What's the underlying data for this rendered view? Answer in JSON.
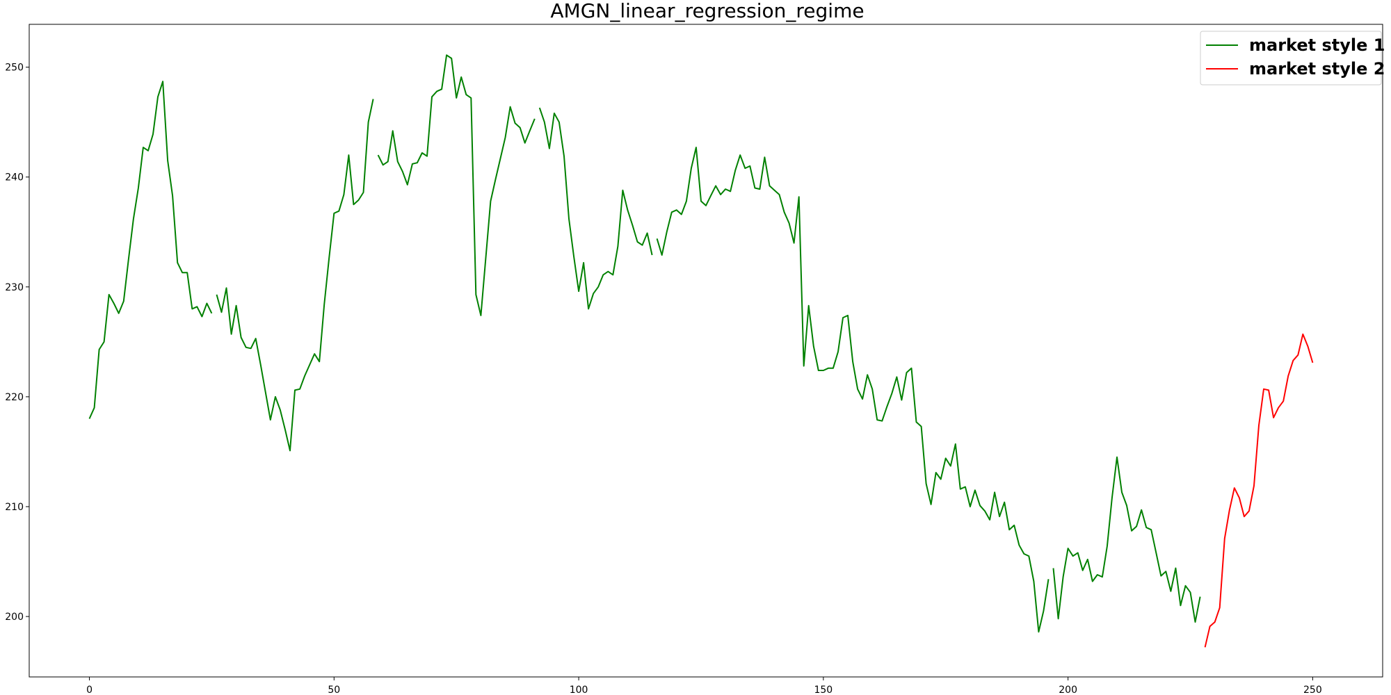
{
  "chart_data": {
    "type": "line",
    "title": "AMGN_linear_regression_regime",
    "xlabel": "",
    "ylabel": "",
    "xlim": [
      -12.3,
      264.3
    ],
    "ylim": [
      194.5,
      253.9
    ],
    "xticks": [
      0,
      50,
      100,
      150,
      200,
      250
    ],
    "yticks": [
      200,
      210,
      220,
      230,
      240,
      250
    ],
    "grid": false,
    "legend_position": "upper right",
    "series": [
      {
        "name": "market style 1",
        "color": "#008000",
        "segments": [
          [
            [
              0,
              218.0
            ],
            [
              1,
              219.0
            ],
            [
              2,
              224.3
            ],
            [
              3,
              225.0
            ],
            [
              4,
              229.3
            ],
            [
              5,
              228.5
            ],
            [
              6,
              227.6
            ],
            [
              7,
              228.7
            ],
            [
              8,
              232.5
            ],
            [
              9,
              236.2
            ],
            [
              10,
              239.0
            ],
            [
              11,
              242.7
            ],
            [
              12,
              242.4
            ],
            [
              13,
              243.9
            ],
            [
              14,
              247.3
            ],
            [
              15,
              248.7
            ],
            [
              16,
              241.5
            ],
            [
              17,
              238.3
            ],
            [
              18,
              232.2
            ],
            [
              19,
              231.3
            ],
            [
              20,
              231.3
            ],
            [
              21,
              228.0
            ],
            [
              22,
              228.2
            ],
            [
              23,
              227.3
            ],
            [
              24,
              228.5
            ],
            [
              25,
              227.6
            ]
          ],
          [
            [
              26,
              229.3
            ],
            [
              27,
              227.7
            ],
            [
              28,
              229.9
            ],
            [
              29,
              225.7
            ],
            [
              30,
              228.3
            ],
            [
              31,
              225.4
            ],
            [
              32,
              224.5
            ],
            [
              33,
              224.4
            ],
            [
              34,
              225.3
            ],
            [
              35,
              222.9
            ],
            [
              36,
              220.4
            ],
            [
              37,
              217.9
            ],
            [
              38,
              220.0
            ],
            [
              39,
              218.8
            ],
            [
              40,
              217.0
            ],
            [
              41,
              215.1
            ],
            [
              42,
              220.6
            ],
            [
              43,
              220.7
            ],
            [
              44,
              221.9
            ],
            [
              45,
              222.9
            ],
            [
              46,
              223.9
            ],
            [
              47,
              223.2
            ],
            [
              48,
              228.4
            ],
            [
              49,
              232.7
            ],
            [
              50,
              236.7
            ],
            [
              51,
              236.9
            ],
            [
              52,
              238.4
            ],
            [
              53,
              242.0
            ],
            [
              54,
              237.5
            ],
            [
              55,
              237.9
            ],
            [
              56,
              238.6
            ],
            [
              57,
              245.0
            ],
            [
              58,
              247.1
            ]
          ],
          [
            [
              59,
              242.0
            ],
            [
              60,
              241.1
            ],
            [
              61,
              241.4
            ],
            [
              62,
              244.2
            ],
            [
              63,
              241.4
            ],
            [
              64,
              240.5
            ],
            [
              65,
              239.3
            ],
            [
              66,
              241.2
            ],
            [
              67,
              241.3
            ],
            [
              68,
              242.2
            ],
            [
              69,
              241.9
            ],
            [
              70,
              247.3
            ],
            [
              71,
              247.8
            ],
            [
              72,
              248.0
            ],
            [
              73,
              251.1
            ],
            [
              74,
              250.8
            ],
            [
              75,
              247.2
            ],
            [
              76,
              249.1
            ],
            [
              77,
              247.5
            ],
            [
              78,
              247.2
            ],
            [
              79,
              229.3
            ],
            [
              80,
              227.4
            ],
            [
              81,
              232.6
            ],
            [
              82,
              237.8
            ],
            [
              83,
              239.8
            ],
            [
              84,
              241.7
            ],
            [
              85,
              243.6
            ],
            [
              86,
              246.4
            ],
            [
              87,
              244.9
            ],
            [
              88,
              244.5
            ],
            [
              89,
              243.1
            ],
            [
              90,
              244.2
            ],
            [
              91,
              245.3
            ]
          ],
          [
            [
              92,
              246.3
            ],
            [
              93,
              245.0
            ],
            [
              94,
              242.6
            ],
            [
              95,
              245.8
            ],
            [
              96,
              245.0
            ],
            [
              97,
              241.9
            ],
            [
              98,
              236.2
            ],
            [
              99,
              232.8
            ],
            [
              100,
              229.6
            ],
            [
              101,
              232.2
            ],
            [
              102,
              228.0
            ],
            [
              103,
              229.4
            ],
            [
              104,
              230.0
            ],
            [
              105,
              231.1
            ],
            [
              106,
              231.4
            ],
            [
              107,
              231.1
            ],
            [
              108,
              233.7
            ],
            [
              109,
              238.8
            ],
            [
              110,
              237.0
            ],
            [
              111,
              235.6
            ],
            [
              112,
              234.1
            ],
            [
              113,
              233.8
            ],
            [
              114,
              234.9
            ],
            [
              115,
              232.9
            ]
          ],
          [
            [
              116,
              234.4
            ],
            [
              117,
              232.9
            ],
            [
              118,
              235.0
            ],
            [
              119,
              236.8
            ],
            [
              120,
              237.0
            ],
            [
              121,
              236.6
            ],
            [
              122,
              237.8
            ],
            [
              123,
              240.8
            ],
            [
              124,
              242.7
            ],
            [
              125,
              237.8
            ],
            [
              126,
              237.4
            ],
            [
              127,
              238.3
            ],
            [
              128,
              239.2
            ],
            [
              129,
              238.4
            ],
            [
              130,
              238.9
            ],
            [
              131,
              238.7
            ],
            [
              132,
              240.6
            ],
            [
              133,
              242.0
            ],
            [
              134,
              240.8
            ],
            [
              135,
              241.0
            ],
            [
              136,
              239.0
            ],
            [
              137,
              238.9
            ],
            [
              138,
              241.8
            ],
            [
              139,
              239.2
            ],
            [
              140,
              238.8
            ],
            [
              141,
              238.4
            ],
            [
              142,
              236.8
            ],
            [
              143,
              235.8
            ],
            [
              144,
              234.0
            ],
            [
              145,
              238.2
            ],
            [
              146,
              222.8
            ],
            [
              147,
              228.3
            ],
            [
              148,
              224.6
            ],
            [
              149,
              222.4
            ],
            [
              150,
              222.4
            ],
            [
              151,
              222.6
            ],
            [
              152,
              222.6
            ],
            [
              153,
              224.1
            ],
            [
              154,
              227.2
            ],
            [
              155,
              227.4
            ],
            [
              156,
              223.2
            ],
            [
              157,
              220.7
            ],
            [
              158,
              219.8
            ],
            [
              159,
              222.0
            ],
            [
              160,
              220.7
            ],
            [
              161,
              217.9
            ],
            [
              162,
              217.8
            ],
            [
              163,
              219.1
            ],
            [
              164,
              220.3
            ],
            [
              165,
              221.8
            ],
            [
              166,
              219.7
            ],
            [
              167,
              222.2
            ],
            [
              168,
              222.6
            ],
            [
              169,
              217.7
            ],
            [
              170,
              217.3
            ],
            [
              171,
              212.1
            ],
            [
              172,
              210.2
            ],
            [
              173,
              213.1
            ],
            [
              174,
              212.5
            ],
            [
              175,
              214.4
            ],
            [
              176,
              213.7
            ],
            [
              177,
              215.7
            ],
            [
              178,
              211.6
            ],
            [
              179,
              211.8
            ],
            [
              180,
              210.0
            ],
            [
              181,
              211.5
            ],
            [
              182,
              210.1
            ],
            [
              183,
              209.6
            ],
            [
              184,
              208.8
            ],
            [
              185,
              211.3
            ],
            [
              186,
              209.1
            ],
            [
              187,
              210.4
            ],
            [
              188,
              207.9
            ],
            [
              189,
              208.3
            ],
            [
              190,
              206.5
            ],
            [
              191,
              205.7
            ],
            [
              192,
              205.5
            ],
            [
              193,
              203.2
            ],
            [
              194,
              198.6
            ],
            [
              195,
              200.5
            ],
            [
              196,
              203.4
            ]
          ],
          [
            [
              197,
              204.4
            ],
            [
              198,
              199.8
            ],
            [
              199,
              203.6
            ],
            [
              200,
              206.2
            ],
            [
              201,
              205.5
            ],
            [
              202,
              205.8
            ],
            [
              203,
              204.2
            ],
            [
              204,
              205.2
            ],
            [
              205,
              203.2
            ],
            [
              206,
              203.8
            ],
            [
              207,
              203.6
            ],
            [
              208,
              206.4
            ],
            [
              209,
              210.8
            ],
            [
              210,
              214.5
            ],
            [
              211,
              211.3
            ],
            [
              212,
              210.1
            ],
            [
              213,
              207.8
            ],
            [
              214,
              208.2
            ],
            [
              215,
              209.7
            ],
            [
              216,
              208.1
            ],
            [
              217,
              207.9
            ],
            [
              218,
              205.8
            ],
            [
              219,
              203.7
            ],
            [
              220,
              204.1
            ],
            [
              221,
              202.3
            ],
            [
              222,
              204.4
            ],
            [
              223,
              201.0
            ],
            [
              224,
              202.8
            ],
            [
              225,
              202.2
            ],
            [
              226,
              199.5
            ],
            [
              227,
              201.8
            ]
          ]
        ]
      },
      {
        "name": "market style 2",
        "color": "#ff0000",
        "segments": [
          [
            [
              228,
              197.2
            ],
            [
              229,
              199.1
            ],
            [
              230,
              199.5
            ],
            [
              231,
              200.8
            ],
            [
              232,
              207.1
            ],
            [
              233,
              209.7
            ],
            [
              234,
              211.7
            ],
            [
              235,
              210.8
            ],
            [
              236,
              209.1
            ],
            [
              237,
              209.6
            ],
            [
              238,
              211.9
            ],
            [
              239,
              217.4
            ],
            [
              240,
              220.7
            ],
            [
              241,
              220.6
            ],
            [
              242,
              218.1
            ],
            [
              243,
              219.0
            ],
            [
              244,
              219.6
            ],
            [
              245,
              221.9
            ],
            [
              246,
              223.3
            ],
            [
              247,
              223.8
            ],
            [
              248,
              225.7
            ],
            [
              249,
              224.6
            ],
            [
              250,
              223.1
            ]
          ]
        ]
      }
    ]
  }
}
